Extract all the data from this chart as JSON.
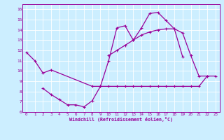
{
  "xlabel": "Windchill (Refroidissement éolien,°C)",
  "background_color": "#cceeff",
  "line_color": "#990099",
  "xlim": [
    -0.5,
    23.5
  ],
  "ylim": [
    6,
    16.5
  ],
  "xticks": [
    0,
    1,
    2,
    3,
    4,
    5,
    6,
    7,
    8,
    9,
    10,
    11,
    12,
    13,
    14,
    15,
    16,
    17,
    18,
    19,
    20,
    21,
    22,
    23
  ],
  "yticks": [
    6,
    7,
    8,
    9,
    10,
    11,
    12,
    13,
    14,
    15,
    16
  ],
  "line1_x": [
    0,
    1,
    2,
    3,
    8,
    9,
    10,
    11,
    12,
    13,
    14,
    15,
    16,
    17,
    18,
    19,
    20,
    21,
    22,
    23
  ],
  "line1_y": [
    11.8,
    11.0,
    9.8,
    10.1,
    8.5,
    8.5,
    8.5,
    8.5,
    8.5,
    8.5,
    8.5,
    8.5,
    8.5,
    8.5,
    8.5,
    8.5,
    8.5,
    8.5,
    9.5,
    9.5
  ],
  "line2_x": [
    2,
    3,
    4,
    5,
    6,
    7,
    8,
    9,
    10,
    11,
    12,
    13,
    14,
    15,
    16,
    17,
    18,
    19
  ],
  "line2_y": [
    8.3,
    7.7,
    7.2,
    6.7,
    6.7,
    6.5,
    7.1,
    8.5,
    11.0,
    14.2,
    14.4,
    13.0,
    14.2,
    15.6,
    15.7,
    14.9,
    14.1,
    11.4
  ],
  "line3_x": [
    10,
    11,
    12,
    13,
    14,
    15,
    16,
    17,
    18,
    19,
    20,
    21,
    22
  ],
  "line3_y": [
    11.5,
    12.0,
    12.5,
    13.0,
    13.5,
    13.8,
    14.0,
    14.1,
    14.1,
    13.7,
    11.5,
    9.5,
    9.5
  ]
}
